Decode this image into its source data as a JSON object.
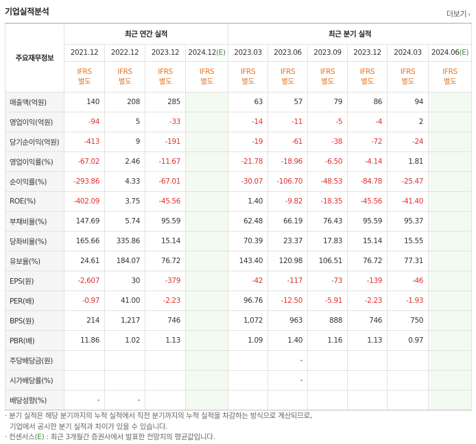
{
  "header": {
    "title": "기업실적분석",
    "more_label": "더보기",
    "more_arrow": "›"
  },
  "table": {
    "corner_label": "주요재무정보",
    "annual_group": "최근 연간 실적",
    "quarter_group": "최근 분기 실적",
    "annual_periods": [
      "2021.12",
      "2022.12",
      "2023.12",
      "2024.12"
    ],
    "quarter_periods": [
      "2023.03",
      "2023.06",
      "2023.09",
      "2023.12",
      "2024.03",
      "2024.06"
    ],
    "estimate_mark": "(E)",
    "ifrs_top": "IFRS",
    "ifrs_bottom": "별도",
    "rows": [
      {
        "label": "매출액(억원)",
        "annual": [
          "140",
          "208",
          "285",
          ""
        ],
        "quarter": [
          "63",
          "57",
          "79",
          "86",
          "94",
          ""
        ]
      },
      {
        "label": "영업이익(억원)",
        "annual": [
          "-94",
          "5",
          "-33",
          ""
        ],
        "quarter": [
          "-14",
          "-11",
          "-5",
          "-4",
          "2",
          ""
        ]
      },
      {
        "label": "당기순이익(억원)",
        "annual": [
          "-413",
          "9",
          "-191",
          ""
        ],
        "quarter": [
          "-19",
          "-61",
          "-38",
          "-72",
          "-24",
          ""
        ]
      },
      {
        "label": "영업이익률(%)",
        "annual": [
          "-67.02",
          "2.46",
          "-11.67",
          ""
        ],
        "quarter": [
          "-21.78",
          "-18.96",
          "-6.50",
          "-4.14",
          "1.81",
          ""
        ]
      },
      {
        "label": "순이익률(%)",
        "annual": [
          "-293.86",
          "4.33",
          "-67.01",
          ""
        ],
        "quarter": [
          "-30.07",
          "-106.70",
          "-48.53",
          "-84.78",
          "-25.47",
          ""
        ]
      },
      {
        "label": "ROE(%)",
        "annual": [
          "-402.09",
          "3.75",
          "-45.56",
          ""
        ],
        "quarter": [
          "1.40",
          "-9.82",
          "-18.35",
          "-45.56",
          "-41.40",
          ""
        ]
      },
      {
        "label": "부채비율(%)",
        "annual": [
          "147.69",
          "5.74",
          "95.59",
          ""
        ],
        "quarter": [
          "62.48",
          "66.19",
          "76.43",
          "95.59",
          "95.37",
          ""
        ]
      },
      {
        "label": "당좌비율(%)",
        "annual": [
          "165.66",
          "335.86",
          "15.14",
          ""
        ],
        "quarter": [
          "70.39",
          "23.37",
          "17.83",
          "15.14",
          "15.55",
          ""
        ]
      },
      {
        "label": "유보율(%)",
        "annual": [
          "24.61",
          "184.07",
          "76.72",
          ""
        ],
        "quarter": [
          "143.40",
          "120.98",
          "106.51",
          "76.72",
          "77.31",
          ""
        ]
      },
      {
        "label": "EPS(원)",
        "annual": [
          "-2,607",
          "30",
          "-379",
          ""
        ],
        "quarter": [
          "-42",
          "-117",
          "-73",
          "-139",
          "-46",
          ""
        ]
      },
      {
        "label": "PER(배)",
        "annual": [
          "-0.97",
          "41.00",
          "-2.23",
          ""
        ],
        "quarter": [
          "96.76",
          "-12.50",
          "-5.91",
          "-2.23",
          "-1.93",
          ""
        ]
      },
      {
        "label": "BPS(원)",
        "annual": [
          "214",
          "1,217",
          "746",
          ""
        ],
        "quarter": [
          "1,072",
          "963",
          "888",
          "746",
          "750",
          ""
        ]
      },
      {
        "label": "PBR(배)",
        "annual": [
          "11.86",
          "1.02",
          "1.13",
          ""
        ],
        "quarter": [
          "1.09",
          "1.40",
          "1.16",
          "1.13",
          "0.97",
          ""
        ]
      },
      {
        "label": "주당배당금(원)",
        "annual": [
          "",
          "",
          "",
          ""
        ],
        "quarter": [
          "",
          "-",
          "",
          "",
          "",
          ""
        ]
      },
      {
        "label": "시가배당률(%)",
        "annual": [
          "",
          "",
          "",
          ""
        ],
        "quarter": [
          "",
          "-",
          "",
          "",
          "",
          ""
        ]
      },
      {
        "label": "배당성향(%)",
        "annual": [
          "-",
          "-",
          "",
          ""
        ],
        "quarter": [
          "",
          "",
          "",
          "",
          "",
          ""
        ]
      }
    ],
    "group_starts": [
      3,
      6,
      9,
      13
    ],
    "colors": {
      "negative": "#e0302f",
      "ifrs": "#e8731f",
      "estimate_bg": "#f3faf0",
      "label_bg": "#f5f5f5"
    }
  },
  "notes": {
    "line1": "· 분기 실적은 해당 분기까지의 누적 실적에서 직전 분기까지의 누적 실적을 차감하는 방식으로 계산되므로,",
    "line2": "기업에서 공시한 분기 실적과 차이가 있을 수 있습니다.",
    "line3_prefix": "· 컨센서스",
    "line3_mark": "(E)",
    "line3_suffix": " : 최근 3개월간 증권사에서 발표한 전망치의 평균값입니다."
  }
}
